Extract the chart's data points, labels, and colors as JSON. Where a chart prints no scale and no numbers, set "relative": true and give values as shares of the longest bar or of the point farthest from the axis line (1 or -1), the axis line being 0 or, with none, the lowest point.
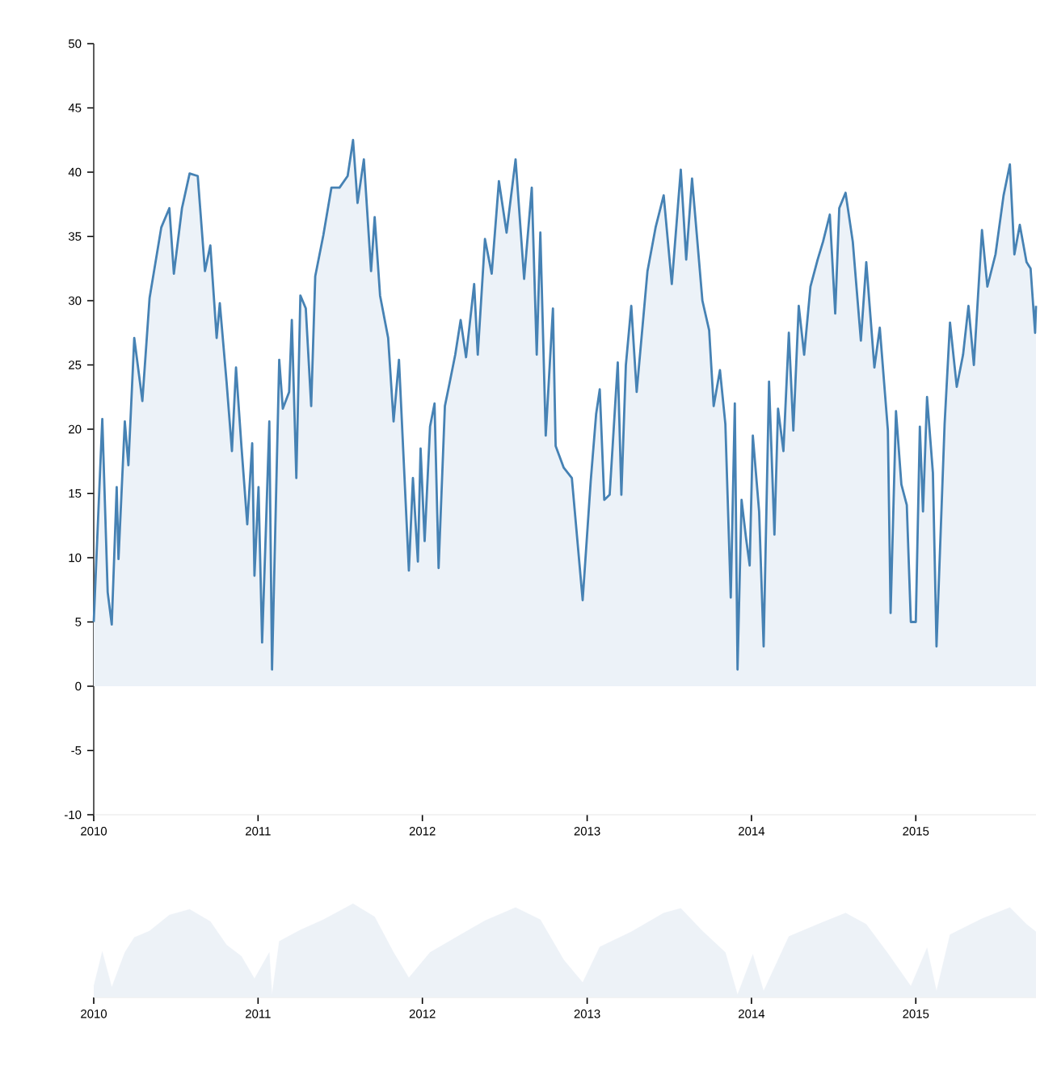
{
  "chart_data": [
    {
      "type": "area",
      "xlim": [
        "2010-01-01",
        "2015-09-25"
      ],
      "ylim": [
        -10,
        50
      ],
      "yticks": [
        -10,
        -5,
        0,
        5,
        10,
        15,
        20,
        25,
        30,
        35,
        40,
        45,
        50
      ],
      "xticks": [
        "2010",
        "2011",
        "2012",
        "2013",
        "2014",
        "2015"
      ],
      "series": [
        {
          "color": "#4682b4",
          "x": [
            "2010-01-01",
            "2010-01-20",
            "2010-02-01",
            "2010-02-10",
            "2010-02-21",
            "2010-02-25",
            "2010-03-11",
            "2010-03-19",
            "2010-04-01",
            "2010-04-19",
            "2010-05-05",
            "2010-05-31",
            "2010-06-18",
            "2010-06-28",
            "2010-07-16",
            "2010-08-02",
            "2010-08-20",
            "2010-09-05",
            "2010-09-17",
            "2010-10-01",
            "2010-10-08",
            "2010-10-23",
            "2010-11-04",
            "2010-11-13",
            "2010-11-25",
            "2010-12-08",
            "2010-12-19",
            "2010-12-24",
            "2011-01-02",
            "2011-01-10",
            "2011-01-18",
            "2011-01-26",
            "2011-02-01",
            "2011-02-17",
            "2011-02-25",
            "2011-03-11",
            "2011-03-17",
            "2011-03-27",
            "2011-04-05",
            "2011-04-17",
            "2011-04-29",
            "2011-05-08",
            "2011-05-26",
            "2011-06-13",
            "2011-07-01",
            "2011-07-19",
            "2011-07-31",
            "2011-08-10",
            "2011-08-24",
            "2011-09-09",
            "2011-09-17",
            "2011-09-29",
            "2011-10-17",
            "2011-10-29",
            "2011-11-10",
            "2011-12-02",
            "2011-12-11",
            "2011-12-22",
            "2011-12-28",
            "2012-01-06",
            "2012-01-18",
            "2012-01-28",
            "2012-02-06",
            "2012-02-20",
            "2012-03-02",
            "2012-03-14",
            "2012-03-26",
            "2012-04-07",
            "2012-04-25",
            "2012-05-03",
            "2012-05-19",
            "2012-06-03",
            "2012-06-19",
            "2012-07-06",
            "2012-07-26",
            "2012-08-14",
            "2012-08-31",
            "2012-09-11",
            "2012-09-19",
            "2012-10-01",
            "2012-10-17",
            "2012-10-23",
            "2012-11-10",
            "2012-11-28",
            "2012-12-22",
            "2013-01-09",
            "2013-01-21",
            "2013-01-29",
            "2013-02-08",
            "2013-02-20",
            "2013-03-10",
            "2013-03-18",
            "2013-03-28",
            "2013-04-09",
            "2013-04-21",
            "2013-05-15",
            "2013-06-02",
            "2013-06-20",
            "2013-07-08",
            "2013-07-28",
            "2013-08-09",
            "2013-08-22",
            "2013-09-14",
            "2013-09-29",
            "2013-10-09",
            "2013-10-23",
            "2013-11-04",
            "2013-11-16",
            "2013-11-25",
            "2013-12-01",
            "2013-12-10",
            "2013-12-20",
            "2013-12-28",
            "2014-01-04",
            "2014-01-18",
            "2014-01-28",
            "2014-02-09",
            "2014-02-21",
            "2014-03-01",
            "2014-03-13",
            "2014-03-25",
            "2014-04-04",
            "2014-04-16",
            "2014-04-28",
            "2014-05-12",
            "2014-05-28",
            "2014-06-09",
            "2014-06-24",
            "2014-07-06",
            "2014-07-15",
            "2014-07-29",
            "2014-08-14",
            "2014-09-01",
            "2014-09-13",
            "2014-10-01",
            "2014-10-13",
            "2014-10-31",
            "2014-11-06",
            "2014-11-18",
            "2014-11-30",
            "2014-12-12",
            "2014-12-21",
            "2015-01-01",
            "2015-01-10",
            "2015-01-17",
            "2015-01-26",
            "2015-02-08",
            "2015-02-16",
            "2015-03-06",
            "2015-03-18",
            "2015-04-02",
            "2015-04-16",
            "2015-04-28",
            "2015-05-10",
            "2015-05-28",
            "2015-06-09",
            "2015-06-27",
            "2015-07-15",
            "2015-07-29",
            "2015-08-08",
            "2015-08-20",
            "2015-09-04",
            "2015-09-13",
            "2015-09-23",
            "2015-09-25"
          ],
          "values": [
            5.0,
            20.8,
            7.3,
            4.8,
            15.5,
            9.9,
            20.6,
            17.2,
            27.1,
            22.2,
            30.2,
            35.7,
            37.2,
            32.1,
            37.2,
            39.9,
            39.7,
            32.3,
            34.3,
            27.1,
            29.8,
            23.7,
            18.3,
            24.8,
            18.7,
            12.6,
            18.9,
            8.6,
            15.5,
            3.4,
            11.8,
            20.6,
            1.3,
            25.4,
            21.6,
            22.9,
            28.5,
            16.2,
            30.4,
            29.4,
            21.8,
            31.9,
            35.1,
            38.8,
            38.8,
            39.7,
            42.5,
            37.6,
            41.0,
            32.3,
            36.5,
            30.4,
            27.1,
            20.6,
            25.4,
            9.0,
            16.2,
            9.7,
            18.5,
            11.3,
            20.2,
            22.0,
            9.2,
            21.8,
            23.7,
            25.8,
            28.5,
            25.6,
            31.3,
            25.8,
            34.8,
            32.1,
            39.3,
            35.3,
            41.0,
            31.7,
            38.8,
            25.8,
            35.3,
            19.5,
            29.4,
            18.7,
            17.0,
            16.2,
            6.7,
            16.0,
            21.2,
            23.1,
            14.5,
            14.9,
            25.2,
            14.9,
            25.0,
            29.6,
            22.9,
            32.3,
            35.7,
            38.2,
            31.3,
            40.2,
            33.2,
            39.5,
            30.0,
            27.7,
            21.8,
            24.6,
            20.4,
            6.9,
            22.0,
            1.3,
            14.5,
            11.5,
            9.4,
            19.5,
            13.6,
            3.1,
            23.7,
            11.8,
            21.6,
            18.3,
            27.5,
            19.9,
            29.6,
            25.8,
            31.1,
            33.2,
            34.6,
            36.7,
            29.0,
            37.2,
            38.4,
            34.6,
            26.9,
            33.0,
            24.8,
            27.9,
            19.9,
            5.7,
            21.4,
            15.7,
            14.1,
            5.0,
            5.0,
            20.2,
            13.6,
            22.5,
            16.6,
            3.1,
            20.4,
            28.3,
            23.3,
            25.8,
            29.6,
            25.0,
            35.5,
            31.1,
            33.6,
            38.2,
            40.6,
            33.6,
            35.9,
            33.0,
            32.5,
            27.5,
            29.6
          ]
        }
      ]
    },
    {
      "type": "area",
      "relative": true,
      "xlim": [
        "2010-01-01",
        "2015-09-25"
      ],
      "xticks": [
        "2010",
        "2011",
        "2012",
        "2013",
        "2014",
        "2015"
      ],
      "series": [
        {
          "color": "#edf2f7",
          "x": [
            "2010-01-01",
            "2010-01-20",
            "2010-02-10",
            "2010-03-11",
            "2010-04-01",
            "2010-05-05",
            "2010-06-18",
            "2010-08-02",
            "2010-09-17",
            "2010-10-23",
            "2010-11-25",
            "2010-12-24",
            "2011-01-26",
            "2011-02-01",
            "2011-02-17",
            "2011-04-05",
            "2011-05-26",
            "2011-07-31",
            "2011-09-17",
            "2011-10-29",
            "2011-12-02",
            "2012-01-18",
            "2012-03-26",
            "2012-05-19",
            "2012-07-26",
            "2012-09-19",
            "2012-11-10",
            "2012-12-22",
            "2013-01-29",
            "2013-04-09",
            "2013-06-20",
            "2013-07-28",
            "2013-09-14",
            "2013-11-04",
            "2013-12-01",
            "2014-01-04",
            "2014-01-28",
            "2014-03-25",
            "2014-05-28",
            "2014-07-29",
            "2014-09-13",
            "2014-10-31",
            "2014-12-21",
            "2015-01-26",
            "2015-02-16",
            "2015-03-18",
            "2015-05-28",
            "2015-07-29",
            "2015-09-04",
            "2015-09-25"
          ],
          "values": [
            0.12,
            0.49,
            0.11,
            0.48,
            0.64,
            0.71,
            0.88,
            0.94,
            0.81,
            0.56,
            0.44,
            0.2,
            0.48,
            0.03,
            0.6,
            0.72,
            0.83,
            1,
            0.86,
            0.48,
            0.21,
            0.48,
            0.67,
            0.82,
            0.96,
            0.83,
            0.4,
            0.16,
            0.54,
            0.7,
            0.9,
            0.95,
            0.71,
            0.48,
            0.03,
            0.46,
            0.07,
            0.65,
            0.78,
            0.9,
            0.78,
            0.47,
            0.12,
            0.53,
            0.07,
            0.67,
            0.84,
            0.96,
            0.78,
            0.7
          ]
        }
      ]
    }
  ]
}
